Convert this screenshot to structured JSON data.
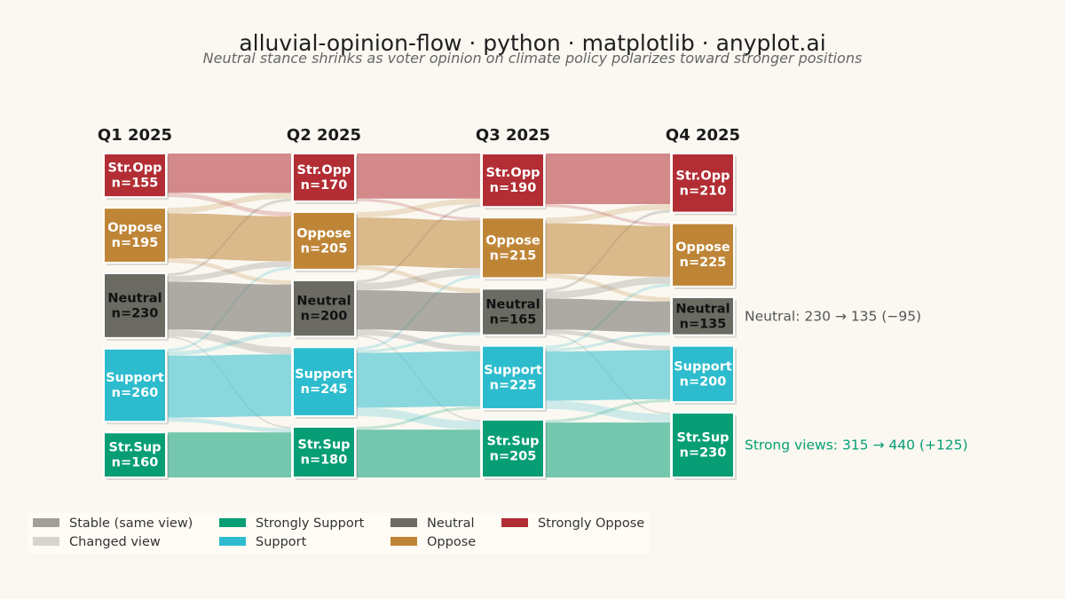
{
  "title": "alluvial-opinion-flow · python · matplotlib · anyplot.ai",
  "subtitle": "Neutral stance shrinks as voter opinion on climate policy polarizes toward stronger positions",
  "chart_data": {
    "type": "alluvial",
    "stages": [
      "Q1 2025",
      "Q2 2025",
      "Q3 2025",
      "Q4 2025"
    ],
    "categories": [
      {
        "key": "Strongly Oppose",
        "short": "Str.Opp",
        "color": "#B22E34"
      },
      {
        "key": "Oppose",
        "short": "Oppose",
        "color": "#BF8537"
      },
      {
        "key": "Neutral",
        "short": "Neutral",
        "color": "#6B6A63"
      },
      {
        "key": "Support",
        "short": "Support",
        "color": "#2DBCCD"
      },
      {
        "key": "Strongly Support",
        "short": "Str.Sup",
        "color": "#079E75"
      }
    ],
    "totals": [
      [
        155,
        195,
        230,
        260,
        160
      ],
      [
        170,
        205,
        200,
        245,
        180
      ],
      [
        190,
        215,
        165,
        225,
        205
      ],
      [
        210,
        225,
        135,
        200,
        230
      ]
    ],
    "count_prefix": "n=",
    "flows": [
      [
        [
          140,
          15,
          0,
          0,
          0
        ],
        [
          20,
          160,
          15,
          0,
          0
        ],
        [
          10,
          20,
          170,
          25,
          5
        ],
        [
          0,
          10,
          15,
          220,
          15
        ],
        [
          0,
          0,
          0,
          0,
          160
        ]
      ],
      [
        [
          160,
          10,
          0,
          0,
          0
        ],
        [
          20,
          170,
          15,
          0,
          0
        ],
        [
          10,
          25,
          140,
          20,
          5
        ],
        [
          0,
          10,
          10,
          195,
          30
        ],
        [
          0,
          0,
          0,
          10,
          170
        ]
      ],
      [
        [
          180,
          10,
          0,
          0,
          0
        ],
        [
          20,
          180,
          15,
          0,
          0
        ],
        [
          10,
          25,
          110,
          15,
          5
        ],
        [
          0,
          10,
          10,
          175,
          30
        ],
        [
          0,
          0,
          0,
          10,
          195
        ]
      ]
    ],
    "annotations": [
      {
        "text": "Neutral: 230 → 135  (−95)",
        "category": "Neutral",
        "color": "#555555"
      },
      {
        "text": "Strong views: 315 → 440  (+125)",
        "category": "Strongly Support",
        "color": "#079E75"
      }
    ],
    "legend": [
      {
        "label": "Stable (same view)",
        "color": "#A19F98"
      },
      {
        "label": "Changed view",
        "color": "#D6D4CD"
      },
      {
        "label": "Strongly Support",
        "color": "#079E75"
      },
      {
        "label": "Support",
        "color": "#2DBCCD"
      },
      {
        "label": "Neutral",
        "color": "#6B6A63"
      },
      {
        "label": "Oppose",
        "color": "#BF8537"
      },
      {
        "label": "Strongly Oppose",
        "color": "#B22E34"
      }
    ]
  }
}
